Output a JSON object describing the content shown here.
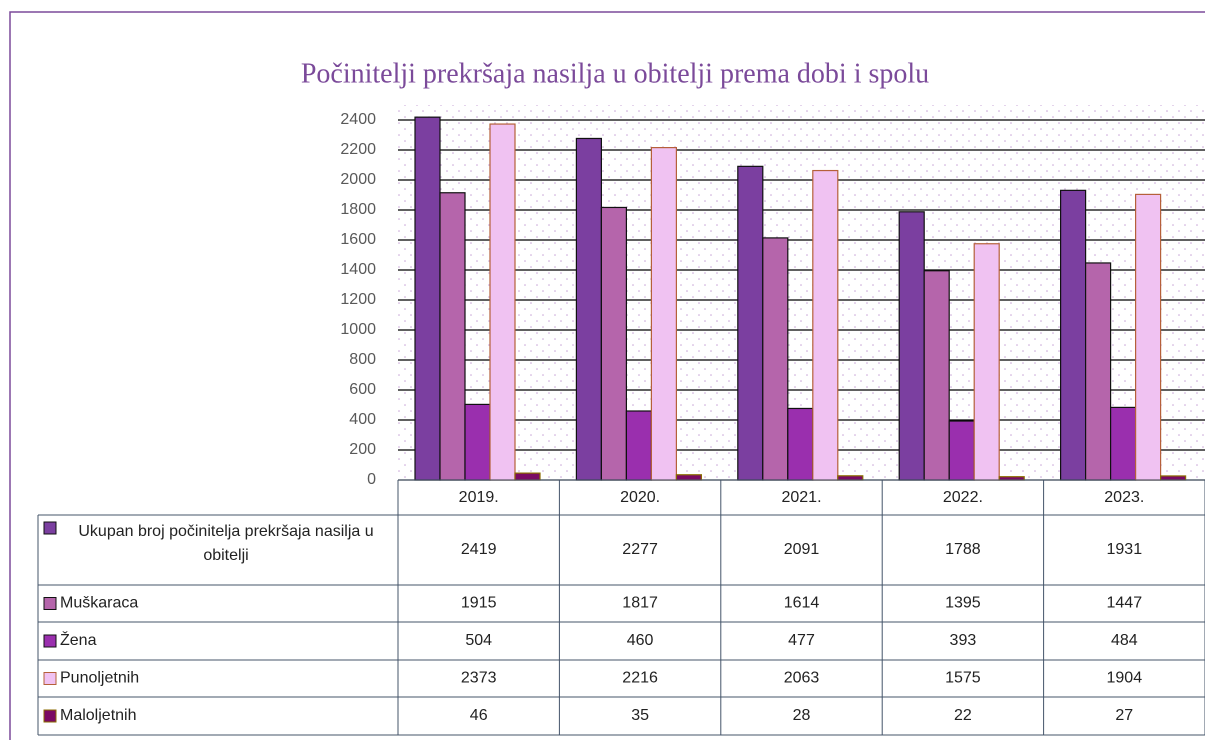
{
  "chart_data": {
    "type": "bar",
    "title": "Počinitelji prekršaja nasilja u obitelji prema dobi i spolu",
    "categories": [
      "2019.",
      "2020.",
      "2021.",
      "2022.",
      "2023."
    ],
    "series": [
      {
        "name": "Ukupan broj počinitelja prekršaja nasilja u obitelji",
        "color": "#7b3fa0",
        "values": [
          2419,
          2277,
          2091,
          1788,
          1931
        ]
      },
      {
        "name": "Muškaraca",
        "color": "#b565ab",
        "values": [
          1915,
          1817,
          1614,
          1395,
          1447
        ]
      },
      {
        "name": "Žena",
        "color": "#9a2fae",
        "values": [
          504,
          460,
          477,
          393,
          484
        ]
      },
      {
        "name": "Punoljetnih",
        "color": "#f0c2f2",
        "values": [
          2373,
          2216,
          2063,
          1575,
          1904
        ]
      },
      {
        "name": "Maloljetnih",
        "color": "#7a0a64",
        "values": [
          46,
          35,
          28,
          22,
          27
        ]
      }
    ],
    "ylim": [
      0,
      2400
    ],
    "yticks": [
      0,
      200,
      400,
      600,
      800,
      1000,
      1200,
      1400,
      1600,
      1800,
      2000,
      2200,
      2400
    ],
    "grid": true
  }
}
